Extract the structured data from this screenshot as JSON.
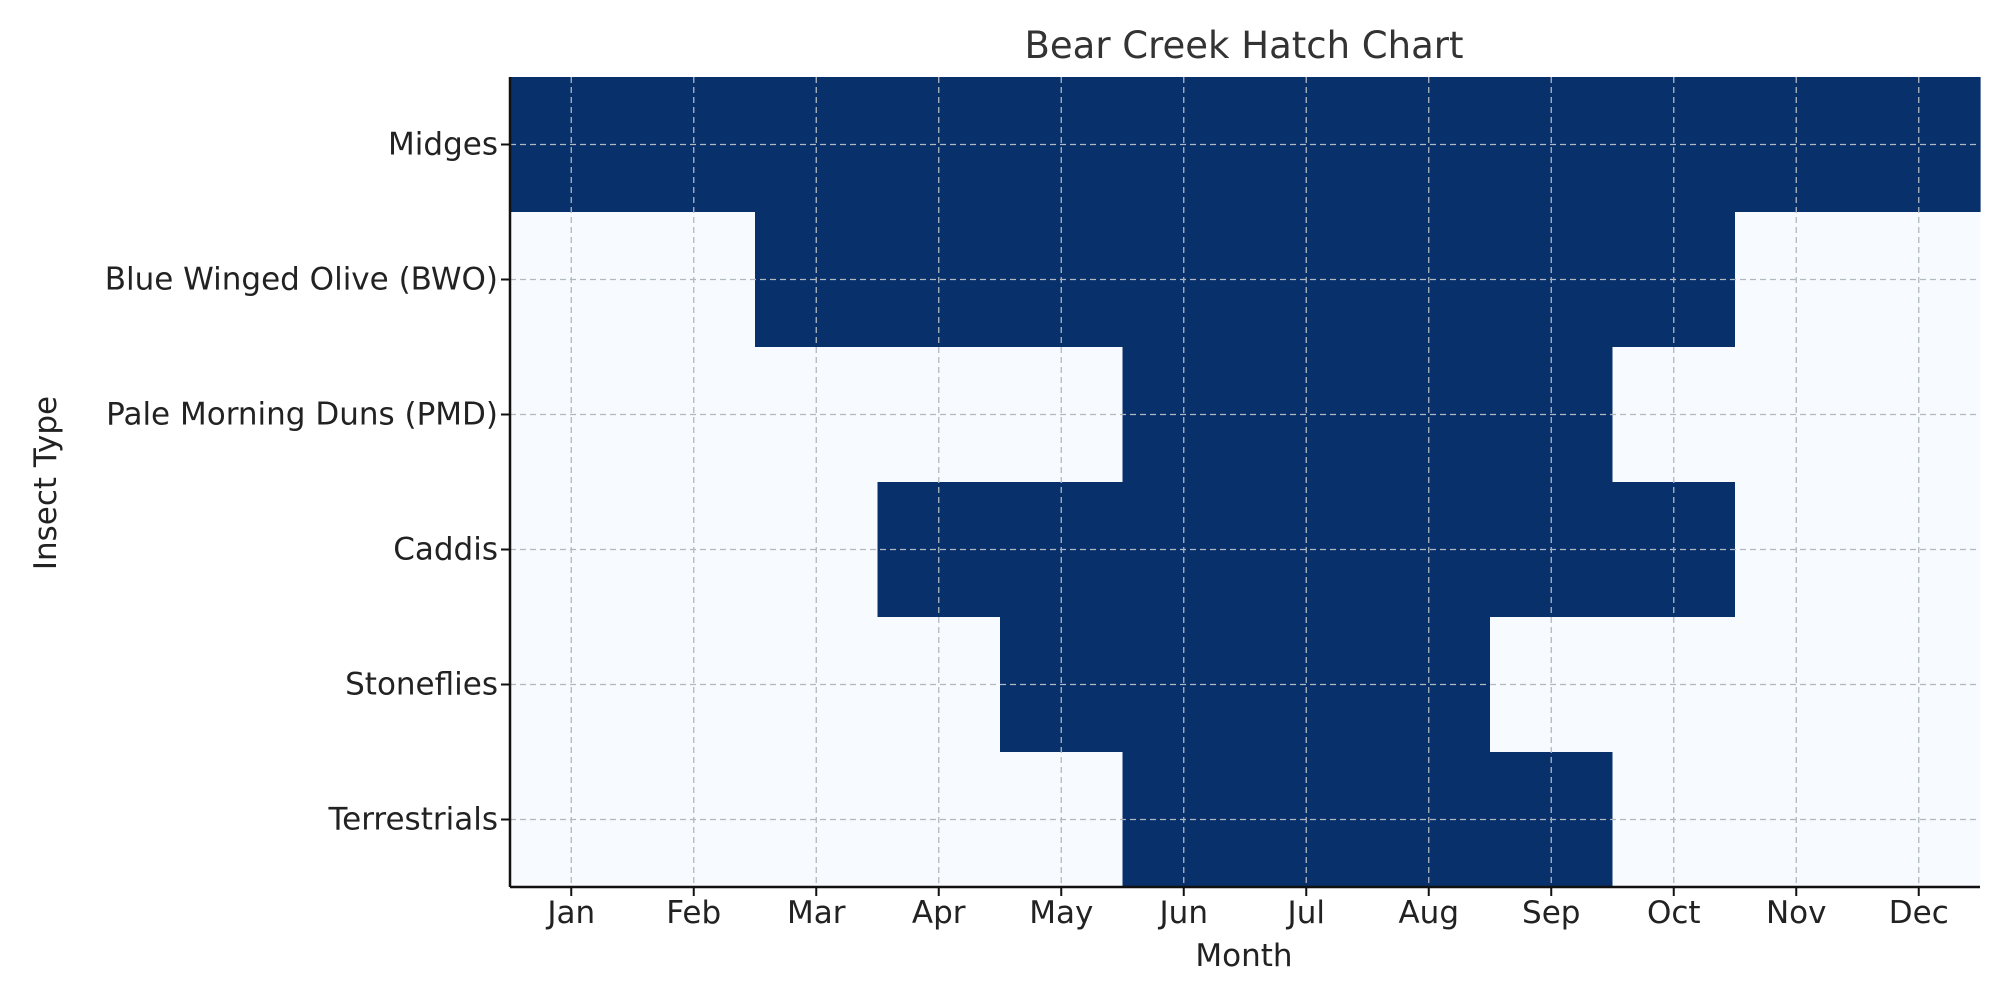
{
  "chart_data": {
    "type": "heatmap",
    "title": "Bear Creek Hatch Chart",
    "xlabel": "Month",
    "ylabel": "Insect Type",
    "x_categories": [
      "Jan",
      "Feb",
      "Mar",
      "Apr",
      "May",
      "Jun",
      "Jul",
      "Aug",
      "Sep",
      "Oct",
      "Nov",
      "Dec"
    ],
    "y_categories": [
      "Midges",
      "Blue Winged Olive (BWO)",
      "Pale Morning Duns (PMD)",
      "Caddis",
      "Stoneflies",
      "Terrestrials"
    ],
    "values": [
      [
        1,
        1,
        1,
        1,
        1,
        1,
        1,
        1,
        1,
        1,
        1,
        1
      ],
      [
        0,
        0,
        1,
        1,
        1,
        1,
        1,
        1,
        1,
        1,
        0,
        0
      ],
      [
        0,
        0,
        0,
        0,
        0,
        1,
        1,
        1,
        1,
        0,
        0,
        0
      ],
      [
        0,
        0,
        0,
        1,
        1,
        1,
        1,
        1,
        1,
        1,
        0,
        0
      ],
      [
        0,
        0,
        0,
        0,
        1,
        1,
        1,
        1,
        0,
        0,
        0,
        0
      ],
      [
        0,
        0,
        0,
        0,
        0,
        1,
        1,
        1,
        1,
        0,
        0,
        0
      ]
    ],
    "colors": {
      "active": "#08306b",
      "inactive": "#f7fbff",
      "grid": "#b0b8c0"
    },
    "grid": true
  }
}
